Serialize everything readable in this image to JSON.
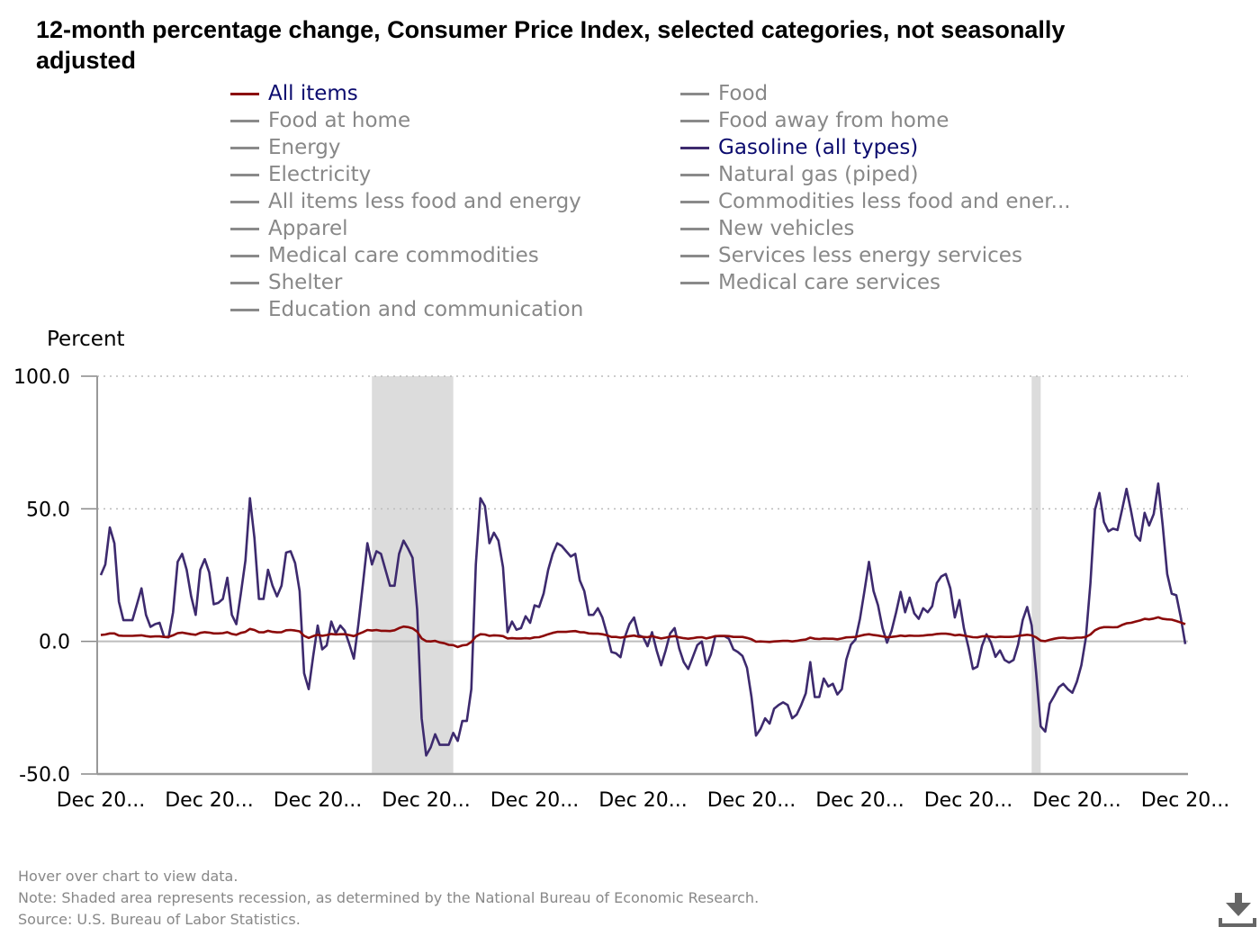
{
  "chart_data": {
    "type": "line",
    "title": "12-month percentage change, Consumer Price Index, selected categories, not seasonally adjusted",
    "ylabel": "Percent",
    "ylim": [
      -50,
      100
    ],
    "y_ticks": [
      "100.0",
      "50.0",
      "0.0",
      "-50.0"
    ],
    "y_tick_values": [
      100,
      50,
      0,
      -50
    ],
    "x_tick_labels": [
      "Dec 20...",
      "Dec 20...",
      "Dec 20...",
      "Dec 20...",
      "Dec 20...",
      "Dec 20...",
      "Dec 20...",
      "Dec 20...",
      "Dec 20...",
      "Dec 20...",
      "Dec 20..."
    ],
    "x_tick_dates": [
      "2002-12",
      "2004-12",
      "2006-12",
      "2008-12",
      "2010-12",
      "2012-12",
      "2014-12",
      "2016-12",
      "2018-12",
      "2020-12",
      "2022-12"
    ],
    "grid": "horizontal dotted",
    "legend_placement": "top",
    "recessions": [
      [
        "2007-12",
        "2009-06"
      ],
      [
        "2020-02",
        "2020-04"
      ]
    ],
    "legend": [
      {
        "label": "All items",
        "active": true,
        "color": "#8b0a0a"
      },
      {
        "label": "Food at home",
        "active": false
      },
      {
        "label": "Energy",
        "active": false
      },
      {
        "label": "Electricity",
        "active": false
      },
      {
        "label": "All items less food and energy",
        "active": false
      },
      {
        "label": "Apparel",
        "active": false
      },
      {
        "label": "Medical care commodities",
        "active": false
      },
      {
        "label": "Shelter",
        "active": false
      },
      {
        "label": "Education and communication",
        "active": false
      },
      {
        "label": "Food",
        "active": false
      },
      {
        "label": "Food away from home",
        "active": false
      },
      {
        "label": "Gasoline (all types)",
        "active": true,
        "color": "#3d2a6e"
      },
      {
        "label": "Natural gas (piped)",
        "active": false
      },
      {
        "label": "Commodities less food and ener...",
        "active": false
      },
      {
        "label": "New vehicles",
        "active": false
      },
      {
        "label": "Services less energy services",
        "active": false
      },
      {
        "label": "Medical care services",
        "active": false
      }
    ],
    "x": [
      "2002-12",
      "2003-01",
      "2003-02",
      "2003-03",
      "2003-04",
      "2003-05",
      "2003-06",
      "2003-07",
      "2003-08",
      "2003-09",
      "2003-10",
      "2003-11",
      "2003-12",
      "2004-01",
      "2004-02",
      "2004-03",
      "2004-04",
      "2004-05",
      "2004-06",
      "2004-07",
      "2004-08",
      "2004-09",
      "2004-10",
      "2004-11",
      "2004-12",
      "2005-01",
      "2005-02",
      "2005-03",
      "2005-04",
      "2005-05",
      "2005-06",
      "2005-07",
      "2005-08",
      "2005-09",
      "2005-10",
      "2005-11",
      "2005-12",
      "2006-01",
      "2006-02",
      "2006-03",
      "2006-04",
      "2006-05",
      "2006-06",
      "2006-07",
      "2006-08",
      "2006-09",
      "2006-10",
      "2006-11",
      "2006-12",
      "2007-01",
      "2007-02",
      "2007-03",
      "2007-04",
      "2007-05",
      "2007-06",
      "2007-07",
      "2007-08",
      "2007-09",
      "2007-10",
      "2007-11",
      "2007-12",
      "2008-01",
      "2008-02",
      "2008-03",
      "2008-04",
      "2008-05",
      "2008-06",
      "2008-07",
      "2008-08",
      "2008-09",
      "2008-10",
      "2008-11",
      "2008-12",
      "2009-01",
      "2009-02",
      "2009-03",
      "2009-04",
      "2009-05",
      "2009-06",
      "2009-07",
      "2009-08",
      "2009-09",
      "2009-10",
      "2009-11",
      "2009-12",
      "2010-01",
      "2010-02",
      "2010-03",
      "2010-04",
      "2010-05",
      "2010-06",
      "2010-07",
      "2010-08",
      "2010-09",
      "2010-10",
      "2010-11",
      "2010-12",
      "2011-01",
      "2011-02",
      "2011-03",
      "2011-04",
      "2011-05",
      "2011-06",
      "2011-07",
      "2011-08",
      "2011-09",
      "2011-10",
      "2011-11",
      "2011-12",
      "2012-01",
      "2012-02",
      "2012-03",
      "2012-04",
      "2012-05",
      "2012-06",
      "2012-07",
      "2012-08",
      "2012-09",
      "2012-10",
      "2012-11",
      "2012-12",
      "2013-01",
      "2013-02",
      "2013-03",
      "2013-04",
      "2013-05",
      "2013-06",
      "2013-07",
      "2013-08",
      "2013-09",
      "2013-10",
      "2013-11",
      "2013-12",
      "2014-01",
      "2014-02",
      "2014-03",
      "2014-04",
      "2014-05",
      "2014-06",
      "2014-07",
      "2014-08",
      "2014-09",
      "2014-10",
      "2014-11",
      "2014-12",
      "2015-01",
      "2015-02",
      "2015-03",
      "2015-04",
      "2015-05",
      "2015-06",
      "2015-07",
      "2015-08",
      "2015-09",
      "2015-10",
      "2015-11",
      "2015-12",
      "2016-01",
      "2016-02",
      "2016-03",
      "2016-04",
      "2016-05",
      "2016-06",
      "2016-07",
      "2016-08",
      "2016-09",
      "2016-10",
      "2016-11",
      "2016-12",
      "2017-01",
      "2017-02",
      "2017-03",
      "2017-04",
      "2017-05",
      "2017-06",
      "2017-07",
      "2017-08",
      "2017-09",
      "2017-10",
      "2017-11",
      "2017-12",
      "2018-01",
      "2018-02",
      "2018-03",
      "2018-04",
      "2018-05",
      "2018-06",
      "2018-07",
      "2018-08",
      "2018-09",
      "2018-10",
      "2018-11",
      "2018-12",
      "2019-01",
      "2019-02",
      "2019-03",
      "2019-04",
      "2019-05",
      "2019-06",
      "2019-07",
      "2019-08",
      "2019-09",
      "2019-10",
      "2019-11",
      "2019-12",
      "2020-01",
      "2020-02",
      "2020-03",
      "2020-04",
      "2020-05",
      "2020-06",
      "2020-07",
      "2020-08",
      "2020-09",
      "2020-10",
      "2020-11",
      "2020-12",
      "2021-01",
      "2021-02",
      "2021-03",
      "2021-04",
      "2021-05",
      "2021-06",
      "2021-07",
      "2021-08",
      "2021-09",
      "2021-10",
      "2021-11",
      "2021-12",
      "2022-01",
      "2022-02",
      "2022-03",
      "2022-04",
      "2022-05",
      "2022-06",
      "2022-07",
      "2022-08",
      "2022-09",
      "2022-10",
      "2022-11",
      "2022-12"
    ],
    "series": [
      {
        "name": "All items",
        "color": "#8b0a0a",
        "values": [
          2.4,
          2.6,
          3.0,
          3.0,
          2.2,
          2.1,
          2.1,
          2.1,
          2.2,
          2.3,
          2.0,
          1.8,
          1.9,
          1.9,
          1.7,
          1.7,
          2.3,
          3.1,
          3.3,
          3.0,
          2.7,
          2.5,
          3.2,
          3.5,
          3.3,
          3.0,
          3.0,
          3.1,
          3.5,
          2.8,
          2.5,
          3.2,
          3.6,
          4.7,
          4.3,
          3.5,
          3.4,
          4.0,
          3.6,
          3.4,
          3.5,
          4.2,
          4.3,
          4.1,
          3.8,
          2.1,
          1.3,
          2.0,
          2.5,
          2.1,
          2.4,
          2.8,
          2.6,
          2.7,
          2.7,
          2.4,
          2.0,
          2.8,
          3.5,
          4.3,
          4.1,
          4.3,
          4.0,
          4.0,
          3.9,
          4.2,
          5.0,
          5.6,
          5.4,
          4.9,
          3.7,
          1.1,
          0.1,
          0.0,
          0.2,
          -0.4,
          -0.7,
          -1.3,
          -1.4,
          -2.1,
          -1.5,
          -1.3,
          -0.2,
          1.8,
          2.7,
          2.6,
          2.1,
          2.3,
          2.2,
          2.0,
          1.1,
          1.2,
          1.1,
          1.1,
          1.2,
          1.1,
          1.5,
          1.6,
          2.1,
          2.7,
          3.2,
          3.6,
          3.6,
          3.6,
          3.8,
          3.9,
          3.5,
          3.4,
          3.0,
          2.9,
          2.9,
          2.7,
          2.3,
          1.7,
          1.7,
          1.4,
          1.7,
          2.0,
          2.2,
          1.8,
          1.7,
          1.6,
          2.0,
          1.5,
          1.1,
          1.4,
          1.8,
          2.0,
          1.5,
          1.2,
          1.0,
          1.2,
          1.5,
          1.6,
          1.1,
          1.5,
          2.0,
          2.1,
          2.1,
          2.0,
          1.7,
          1.7,
          1.7,
          1.3,
          0.8,
          -0.1,
          0.0,
          -0.1,
          -0.2,
          0.0,
          0.1,
          0.2,
          0.2,
          0.0,
          0.2,
          0.5,
          0.7,
          1.4,
          1.0,
          0.9,
          1.1,
          1.0,
          1.0,
          0.8,
          1.1,
          1.5,
          1.6,
          1.7,
          2.1,
          2.5,
          2.7,
          2.4,
          2.2,
          1.9,
          1.6,
          1.7,
          1.9,
          2.2,
          2.0,
          2.2,
          2.1,
          2.1,
          2.2,
          2.4,
          2.5,
          2.8,
          2.9,
          2.9,
          2.7,
          2.3,
          2.5,
          2.2,
          1.9,
          1.6,
          1.5,
          1.9,
          2.0,
          1.8,
          1.6,
          1.8,
          1.7,
          1.7,
          1.8,
          2.1,
          2.3,
          2.5,
          2.3,
          1.5,
          0.3,
          0.1,
          0.6,
          1.0,
          1.3,
          1.4,
          1.2,
          1.2,
          1.4,
          1.4,
          1.7,
          2.6,
          4.2,
          5.0,
          5.4,
          5.4,
          5.3,
          5.4,
          6.2,
          6.8,
          7.0,
          7.5,
          7.9,
          8.5,
          8.3,
          8.6,
          9.1,
          8.5,
          8.3,
          8.2,
          7.7,
          7.1,
          6.5
        ]
      },
      {
        "name": "Gasoline (all types)",
        "color": "#3d2a6e",
        "values": [
          25,
          29,
          43,
          37,
          15,
          8,
          8,
          8,
          14,
          20,
          10,
          5.5,
          6.5,
          7,
          1.7,
          1.5,
          11,
          30,
          33,
          27,
          17,
          10,
          27,
          31,
          26,
          14,
          14.5,
          16,
          24,
          10,
          6.5,
          18,
          30.5,
          54,
          39,
          16,
          16,
          27,
          21,
          17,
          21,
          33.5,
          34,
          29.5,
          19,
          -12,
          -18,
          -5.5,
          6,
          -3,
          -1.5,
          7.5,
          3,
          6,
          4,
          -1,
          -6.5,
          6.5,
          21.5,
          37,
          29,
          34,
          33,
          27,
          21,
          21,
          33,
          38,
          35,
          31.5,
          12,
          -29,
          -43,
          -40,
          -35,
          -39,
          -39,
          -39,
          -34.5,
          -37.5,
          -30,
          -30,
          -18,
          29,
          54,
          51,
          37,
          41,
          38,
          28,
          3.5,
          7.5,
          4.4,
          5,
          9.5,
          7,
          13.6,
          13,
          18,
          27,
          33,
          37,
          36,
          34,
          32,
          33,
          23,
          19,
          10,
          10,
          12.5,
          9,
          3,
          -4,
          -4.5,
          -6,
          1.7,
          6.5,
          9,
          2.3,
          1.7,
          -1.8,
          3.5,
          -3.4,
          -9,
          -3.4,
          3,
          5,
          -2.7,
          -7.8,
          -10.4,
          -6,
          -1.4,
          0,
          -9,
          -5,
          2,
          2,
          2,
          1,
          -3,
          -4,
          -5.5,
          -10,
          -21,
          -35.5,
          -33,
          -29,
          -31,
          -25.4,
          -24,
          -23,
          -24,
          -29,
          -27.6,
          -24,
          -19.6,
          -7.8,
          -21,
          -21,
          -14,
          -17,
          -16,
          -20,
          -18,
          -6.8,
          -1.2,
          0.7,
          8.5,
          19,
          30,
          19,
          13.6,
          5,
          -0.5,
          4,
          11,
          18.7,
          11,
          16.5,
          10.6,
          8.5,
          12.5,
          11,
          13.3,
          22,
          24.5,
          25.4,
          20,
          9,
          15.6,
          5,
          -2.1,
          -10.4,
          -9.5,
          -1.7,
          2.7,
          -0.5,
          -5.8,
          -3.4,
          -7,
          -8,
          -7,
          -1.2,
          8,
          13,
          6,
          -12,
          -32,
          -34,
          -23.5,
          -20.5,
          -17.3,
          -16,
          -18,
          -19.4,
          -15.2,
          -9,
          1.3,
          22,
          49.6,
          56,
          45,
          41.5,
          42.5,
          42,
          49.6,
          57.5,
          49,
          40,
          38,
          48.5,
          43.7,
          48,
          59.5,
          43.7,
          25.4,
          18,
          17.4,
          9,
          -1
        ]
      }
    ]
  },
  "notes": {
    "hover": "Hover over chart to view data.",
    "note": "Note: Shaded area represents recession, as determined by the National Bureau of Economic Research.",
    "source": "Source: U.S. Bureau of Labor Statistics."
  },
  "icons": {
    "download": "download-icon"
  }
}
